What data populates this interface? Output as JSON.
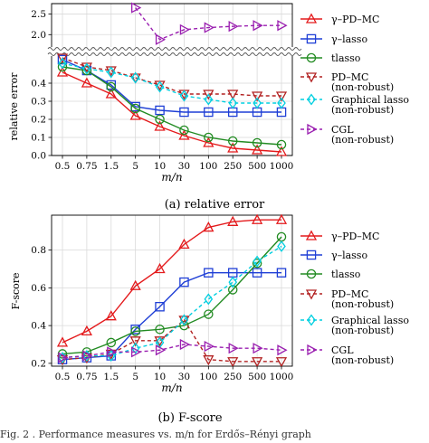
{
  "chart_data": [
    {
      "id": "relative-error",
      "type": "line",
      "caption": "(a) relative error",
      "xlabel": "m/n",
      "ylabel": "relative error",
      "x": [
        "0.5",
        "0.75",
        "1.5",
        "5",
        "10",
        "30",
        "100",
        "250",
        "500",
        "1000"
      ],
      "y_lower": {
        "ylim": [
          0,
          0.55
        ],
        "ticks": [
          "0.0",
          "0.1",
          "0.2",
          "0.3",
          "0.4"
        ]
      },
      "y_upper": {
        "ylim": [
          1.7,
          2.75
        ],
        "ticks": [
          "2.0",
          "2.5"
        ]
      },
      "broken_axis": true,
      "grid": true,
      "legend_position": "right",
      "series": [
        {
          "name": "γ–PD–MC",
          "values": [
            0.46,
            0.4,
            0.34,
            0.22,
            0.16,
            0.11,
            0.07,
            0.04,
            0.03,
            0.02
          ]
        },
        {
          "name": "γ–lasso",
          "values": [
            0.53,
            0.47,
            0.39,
            0.27,
            0.25,
            0.24,
            0.24,
            0.24,
            0.24,
            0.24
          ]
        },
        {
          "name": "tlasso",
          "values": [
            0.49,
            0.47,
            0.38,
            0.26,
            0.2,
            0.14,
            0.1,
            0.08,
            0.07,
            0.06
          ]
        },
        {
          "name": "PD–MC\n(non-robust)",
          "values": [
            0.54,
            0.49,
            0.47,
            0.43,
            0.39,
            0.34,
            0.34,
            0.34,
            0.33,
            0.33
          ]
        },
        {
          "name": "Graphical lasso\n(non-robust)",
          "values": [
            0.51,
            0.48,
            0.46,
            0.43,
            0.38,
            0.33,
            0.31,
            0.29,
            0.29,
            0.29
          ]
        },
        {
          "name": "CGL\n(non-robust)",
          "values": [
            null,
            null,
            null,
            2.65,
            1.88,
            2.12,
            2.17,
            2.2,
            2.22,
            2.22
          ]
        }
      ]
    },
    {
      "id": "f-score",
      "type": "line",
      "caption": "(b) F-score",
      "xlabel": "m/n",
      "ylabel": "F-score",
      "x": [
        "0.5",
        "0.75",
        "1.5",
        "5",
        "10",
        "30",
        "100",
        "250",
        "500",
        "1000"
      ],
      "ylim": [
        0.185,
        0.985
      ],
      "yticks": [
        "0.2",
        "0.4",
        "0.6",
        "0.8"
      ],
      "grid": true,
      "legend_position": "right",
      "series": [
        {
          "name": "γ–PD–MC",
          "values": [
            0.31,
            0.37,
            0.45,
            0.61,
            0.7,
            0.83,
            0.92,
            0.95,
            0.96,
            0.96
          ]
        },
        {
          "name": "γ–lasso",
          "values": [
            0.22,
            0.23,
            0.24,
            0.38,
            0.5,
            0.63,
            0.68,
            0.68,
            0.68,
            0.68
          ]
        },
        {
          "name": "tlasso",
          "values": [
            0.25,
            0.26,
            0.31,
            0.37,
            0.38,
            0.4,
            0.46,
            0.59,
            0.73,
            0.87
          ]
        },
        {
          "name": "PD–MC\n(non-robust)",
          "values": [
            0.22,
            0.23,
            0.25,
            0.32,
            0.32,
            0.43,
            0.22,
            0.21,
            0.21,
            0.21
          ]
        },
        {
          "name": "Graphical lasso\n(non-robust)",
          "values": [
            0.23,
            0.24,
            0.24,
            0.28,
            0.31,
            0.43,
            0.54,
            0.63,
            0.74,
            0.82
          ]
        },
        {
          "name": "CGL\n(non-robust)",
          "values": [
            0.23,
            0.24,
            0.26,
            0.26,
            0.27,
            0.3,
            0.29,
            0.28,
            0.28,
            0.27
          ]
        }
      ]
    }
  ],
  "series_style": [
    {
      "color": "#e41a1c",
      "dash": "",
      "marker": "triangle-up"
    },
    {
      "color": "#1f3fd6",
      "dash": "",
      "marker": "square"
    },
    {
      "color": "#228b22",
      "dash": "",
      "marker": "circle"
    },
    {
      "color": "#b22222",
      "dash": "4,3",
      "marker": "triangle-down"
    },
    {
      "color": "#00cfe0",
      "dash": "4,3",
      "marker": "diamond"
    },
    {
      "color": "#9a1fb0",
      "dash": "4,3",
      "marker": "triangle-right"
    }
  ],
  "footer_text": "Fig. 2 . Performance measures vs. m/n for Erdős–Rényi graph"
}
